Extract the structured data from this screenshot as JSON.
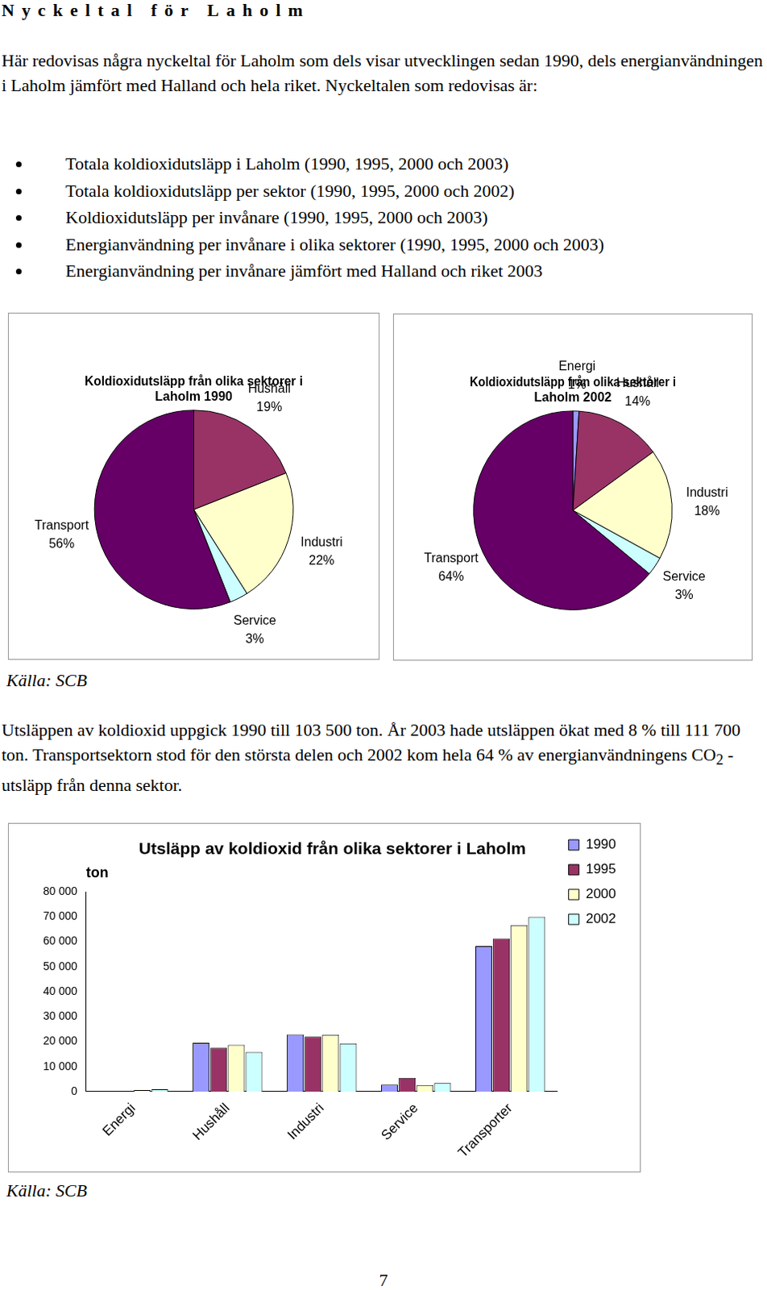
{
  "heading": "Nyckeltal för Laholm",
  "intro": "Här redovisas några nyckeltal för Laholm som dels visar utvecklingen sedan 1990, dels energianvändningen i Laholm jämfört med Halland och hela riket. Nyckeltalen som redovisas är:",
  "bullets": [
    "Totala koldioxidutsläpp i Laholm (1990, 1995, 2000 och 2003)",
    "Totala koldioxidutsläpp per sektor (1990, 1995, 2000 och 2002)",
    "Koldioxidutsläpp per invånare (1990, 1995, 2000 och 2003)",
    "Energianvändning per invånare i olika sektorer (1990, 1995, 2000 och 2003)",
    "Energianvändning per invånare jämfört med Halland och riket 2003"
  ],
  "pie_source": "Källa: SCB",
  "paragraph": {
    "text": "Utsläppen av koldioxid uppgick 1990 till 103 500 ton. År 2003 hade utsläppen ökat med 8 % till 111 700 ton. Transportsektorn stod för den största delen och 2002 kom hela 64 % av energianvändningens CO",
    "subscript": "2",
    "text_after": " -utsläpp från denna sektor."
  },
  "bar_source": "Källa: SCB",
  "page_number": "7",
  "chart_data": [
    {
      "type": "pie",
      "title": "Koldioxidutsläpp från olika sektorer i Laholm 1990",
      "categories": [
        "Hushåll",
        "Industri",
        "Service",
        "Transport"
      ],
      "values": [
        19,
        22,
        3,
        56
      ],
      "value_labels": [
        "19%",
        "22%",
        "3%",
        "56%"
      ],
      "colors": [
        "#993366",
        "#ffffcc",
        "#ccffff",
        "#660066"
      ],
      "data_labels": true
    },
    {
      "type": "pie",
      "title": "Koldioxidutsläpp från olika sektorer i Laholm 2002",
      "categories": [
        "Energi",
        "Hushåll",
        "Industri",
        "Service",
        "Transport"
      ],
      "values": [
        1,
        14,
        18,
        3,
        64
      ],
      "value_labels": [
        "1%",
        "14%",
        "18%",
        "3%",
        "64%"
      ],
      "colors": [
        "#9999ff",
        "#993366",
        "#ffffcc",
        "#ccffff",
        "#660066"
      ],
      "data_labels": true
    },
    {
      "type": "bar",
      "title": "Utsläpp av koldioxid från olika sektorer i Laholm",
      "ylabel": "ton",
      "categories": [
        "Energi",
        "Hushåll",
        "Industri",
        "Service",
        "Transporter"
      ],
      "series": [
        {
          "name": "1990",
          "color": "#9999ff",
          "values": [
            0,
            19500,
            22900,
            2800,
            58300
          ]
        },
        {
          "name": "1995",
          "color": "#993366",
          "values": [
            0,
            17500,
            22000,
            5500,
            61300
          ]
        },
        {
          "name": "2000",
          "color": "#ffffcc",
          "values": [
            600,
            18700,
            22800,
            2600,
            66700
          ]
        },
        {
          "name": "2002",
          "color": "#ccffff",
          "values": [
            900,
            15800,
            19300,
            3400,
            70000
          ]
        }
      ],
      "ylim": [
        0,
        80000
      ],
      "yticks": [
        0,
        {
          "value": 10000,
          "label": "10 000"
        },
        {
          "value": 20000,
          "label": "20 000"
        },
        {
          "value": 30000,
          "label": "30 000"
        },
        {
          "value": 40000,
          "label": "40 000"
        },
        {
          "value": 50000,
          "label": "50 000"
        },
        {
          "value": 60000,
          "label": "60 000"
        },
        {
          "value": 70000,
          "label": "70 000"
        },
        {
          "value": 80000,
          "label": "80 000"
        }
      ],
      "grid": false,
      "legend": "right"
    }
  ]
}
